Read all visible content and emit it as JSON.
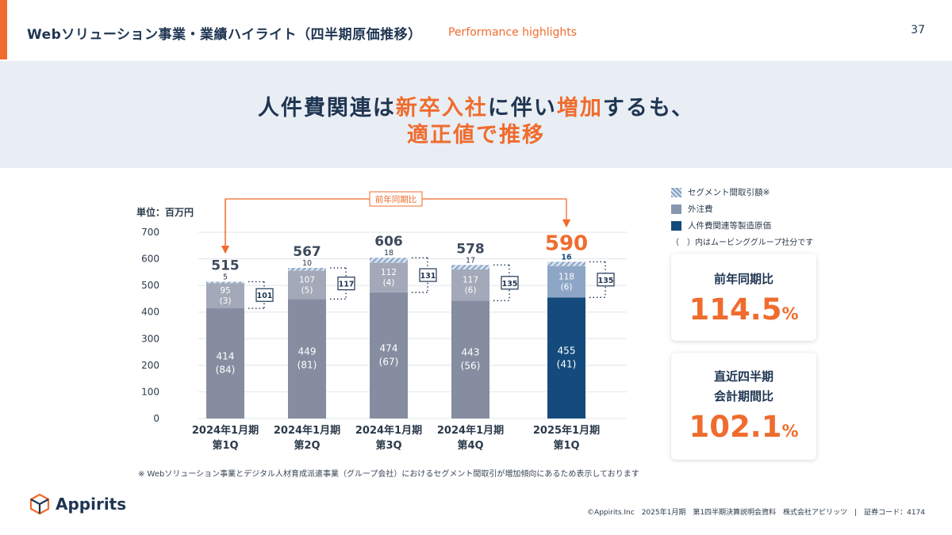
{
  "header": {
    "title": "Webソリューション事業・業績ハイライト（四半期原価推移）",
    "subtitle": "Performance highlights",
    "page_number": "37"
  },
  "banner": {
    "line1_a": "人件費関連は",
    "line1_b": "新卒入社",
    "line1_c": "に伴い",
    "line1_d": "増加",
    "line1_e": "するも、",
    "line2": "適正値で推移"
  },
  "colors": {
    "accent": "#ef6c2e",
    "navy": "#1f3552",
    "bar_gray": "#868da0",
    "bar_light": "#a3a9b8",
    "bar_current": "#144b7c",
    "bar_current_light": "#8ea6c6"
  },
  "legend": {
    "items": [
      {
        "label": "セグメント間取引額※",
        "icon": "hatched-square"
      },
      {
        "label": "外注費",
        "icon": "gray-square"
      },
      {
        "label": "人件費関連等製造原価",
        "icon": "navy-square"
      }
    ],
    "note": "（　）内はムービンググループ社分です"
  },
  "cards": [
    {
      "label": "前年同期比",
      "value": "114.5",
      "unit": "%"
    },
    {
      "label_line1": "直近四半期",
      "label_line2": "会計期間比",
      "value": "102.1",
      "unit": "%"
    }
  ],
  "footnote": "※ Webソリューション事業とデジタル人材育成派遣事業（グループ会社）におけるセグメント間取引が増加傾向にあるため表示しております",
  "logo": {
    "text": "Appirits"
  },
  "footer": "©Appirits.Inc　2025年1月期　第1四半期決算説明会資料　株式会社アピリッツ　|　証券コード：4174",
  "chart_data": {
    "type": "bar",
    "stacked": true,
    "unit_label": "単位：百万円",
    "ylim": [
      0,
      700
    ],
    "yticks": [
      0,
      100,
      200,
      300,
      400,
      500,
      600,
      700
    ],
    "yoy_bracket_label": "前年同期比",
    "categories": [
      {
        "line1": "2024年1月期",
        "line2": "第1Q"
      },
      {
        "line1": "2024年1月期",
        "line2": "第2Q"
      },
      {
        "line1": "2024年1月期",
        "line2": "第3Q"
      },
      {
        "line1": "2024年1月期",
        "line2": "第4Q"
      },
      {
        "line1": "2025年1月期",
        "line2": "第1Q"
      }
    ],
    "series": [
      {
        "name": "人件費関連等製造原価",
        "values": [
          414,
          449,
          474,
          443,
          455
        ],
        "sub": [
          "(84)",
          "(81)",
          "(67)",
          "(56)",
          "(41)"
        ]
      },
      {
        "name": "外注費",
        "values": [
          95,
          107,
          112,
          117,
          118
        ],
        "sub": [
          "(3)",
          "(5)",
          "(4)",
          "(6)",
          "(6)"
        ]
      },
      {
        "name": "セグメント間取引額",
        "values": [
          5,
          10,
          18,
          17,
          16
        ]
      }
    ],
    "totals": [
      515,
      567,
      606,
      578,
      590
    ],
    "bracket_values": [
      101,
      117,
      131,
      135,
      135
    ],
    "highlight_index": 4
  }
}
